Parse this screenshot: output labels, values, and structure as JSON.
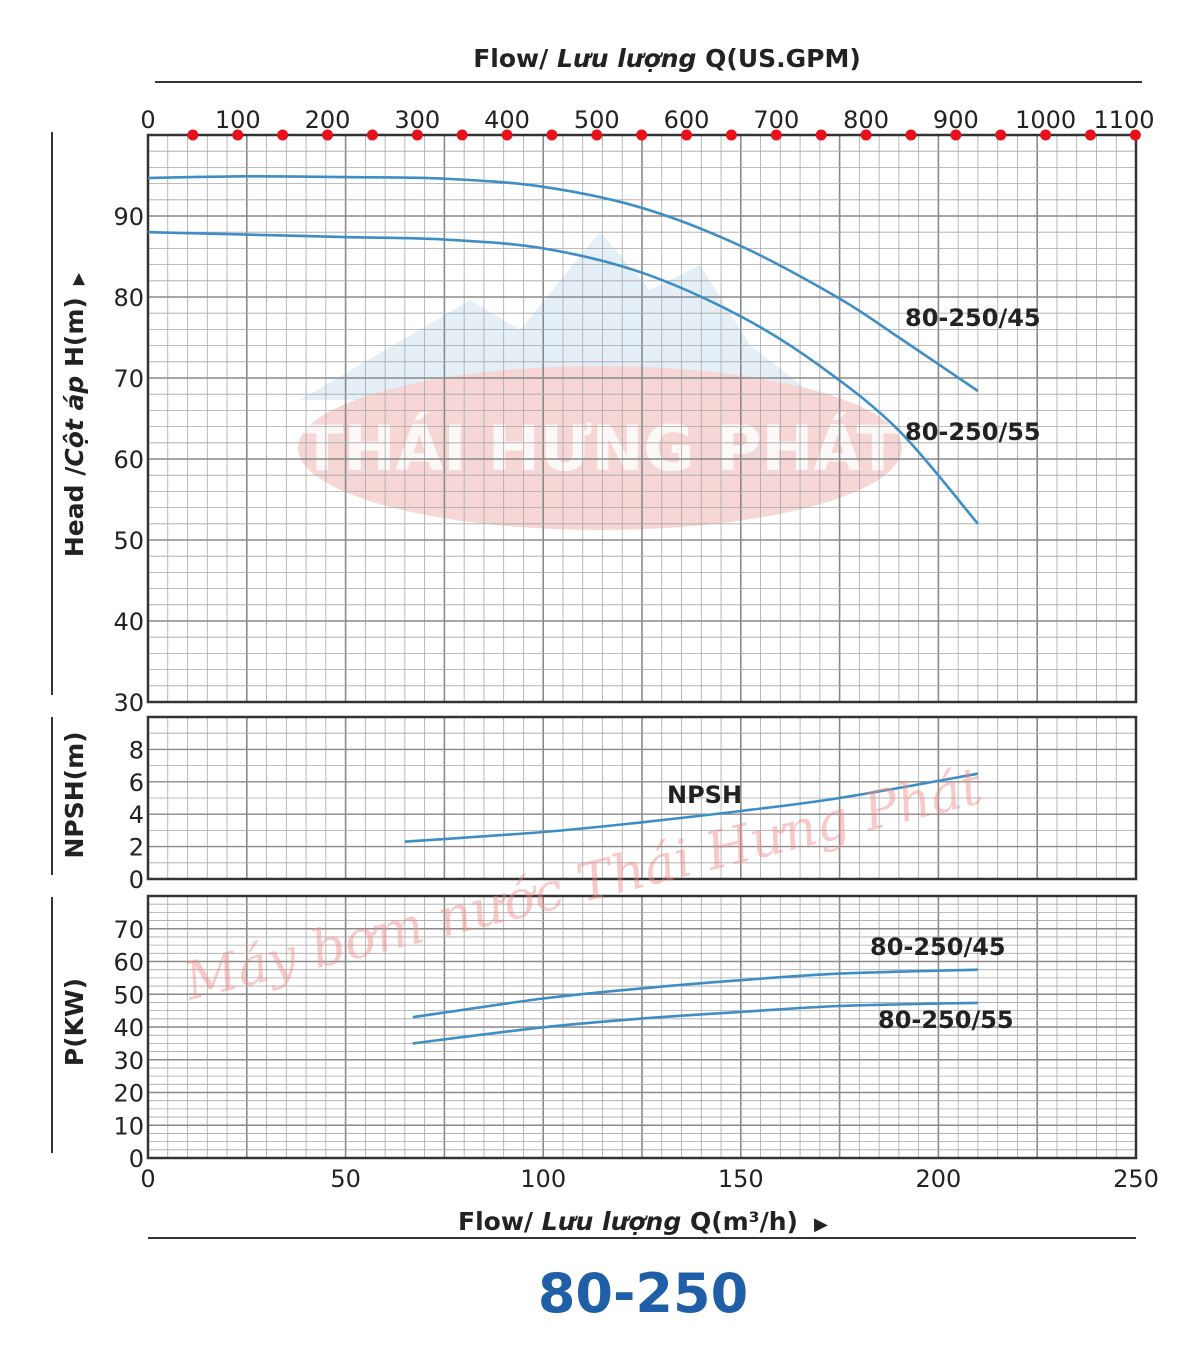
{
  "top_axis": {
    "title_prefix": "Flow/ ",
    "title_italic": "Lưu lượng",
    "title_suffix": " Q(US.GPM)",
    "ticks": [
      "0",
      "100",
      "200",
      "300",
      "400",
      "500",
      "600",
      "700",
      "800",
      "900",
      "1000",
      "1100"
    ]
  },
  "bottom_axis": {
    "title_prefix": "Flow/ ",
    "title_italic": "Lưu lượng",
    "title_suffix": " Q(m³/h)",
    "arrow": "▶",
    "ticks": [
      "0",
      "50",
      "100",
      "150",
      "200",
      "250"
    ]
  },
  "head_axis": {
    "title_prefix": "Head  /",
    "title_italic": "Cột áp",
    "title_suffix": " H(m)",
    "arrow": "▶",
    "ticks": [
      "30",
      "40",
      "50",
      "60",
      "70",
      "80",
      "90"
    ]
  },
  "npsh_axis": {
    "title": "NPSH(m)",
    "ticks": [
      "0",
      "2",
      "4",
      "6",
      "8"
    ]
  },
  "power_axis": {
    "title": "P(KW)",
    "ticks": [
      "0",
      "10",
      "20",
      "30",
      "40",
      "50",
      "60",
      "70"
    ]
  },
  "model_title": "80-250",
  "watermark": {
    "logo_text": "THÁI HƯNG PHÁT",
    "script_text": "Máy bơm nước Thái Hưng Phát"
  },
  "colors": {
    "curve": "#3e8ec6",
    "grid": "#a8a8a8",
    "frame": "#333333",
    "dots": "#e8101a",
    "title": "#1f5fa8"
  },
  "chart_data": [
    {
      "type": "line",
      "panel": "head",
      "xlabel": "Flow/ Lưu lượng Q(m³/h)",
      "ylabel": "Head /Cột áp H(m)",
      "xlim": [
        0,
        250
      ],
      "ylim": [
        30,
        100
      ],
      "series": [
        {
          "name": "80-250/45",
          "x": [
            0,
            25,
            50,
            75,
            100,
            125,
            150,
            175,
            190,
            210
          ],
          "y": [
            94.7,
            94.9,
            94.8,
            94.6,
            93.6,
            91.0,
            86.3,
            79.8,
            75.0,
            68.4
          ]
        },
        {
          "name": "80-250/55",
          "x": [
            0,
            25,
            50,
            75,
            100,
            125,
            150,
            170,
            190,
            210
          ],
          "y": [
            88.0,
            87.7,
            87.4,
            87.1,
            86.0,
            83.0,
            77.6,
            71.5,
            63.5,
            52.0
          ]
        }
      ]
    },
    {
      "type": "line",
      "panel": "npsh",
      "ylabel": "NPSH(m)",
      "xlim": [
        0,
        250
      ],
      "ylim": [
        0,
        10
      ],
      "series": [
        {
          "name": "NPSH",
          "x": [
            65,
            100,
            125,
            150,
            175,
            210
          ],
          "y": [
            2.3,
            2.9,
            3.5,
            4.2,
            5.0,
            6.5
          ]
        }
      ]
    },
    {
      "type": "line",
      "panel": "power",
      "xlabel": "Flow/ Lưu lượng Q(m³/h)",
      "ylabel": "P(KW)",
      "xlim": [
        0,
        250
      ],
      "ylim": [
        0,
        80
      ],
      "series": [
        {
          "name": "80-250/45",
          "x": [
            67,
            100,
            125,
            150,
            175,
            210
          ],
          "y": [
            43.0,
            48.7,
            51.8,
            54.3,
            56.3,
            57.5
          ]
        },
        {
          "name": "80-250/55",
          "x": [
            67,
            100,
            125,
            150,
            175,
            210
          ],
          "y": [
            35.0,
            39.9,
            42.6,
            44.6,
            46.4,
            47.4
          ]
        }
      ]
    }
  ]
}
